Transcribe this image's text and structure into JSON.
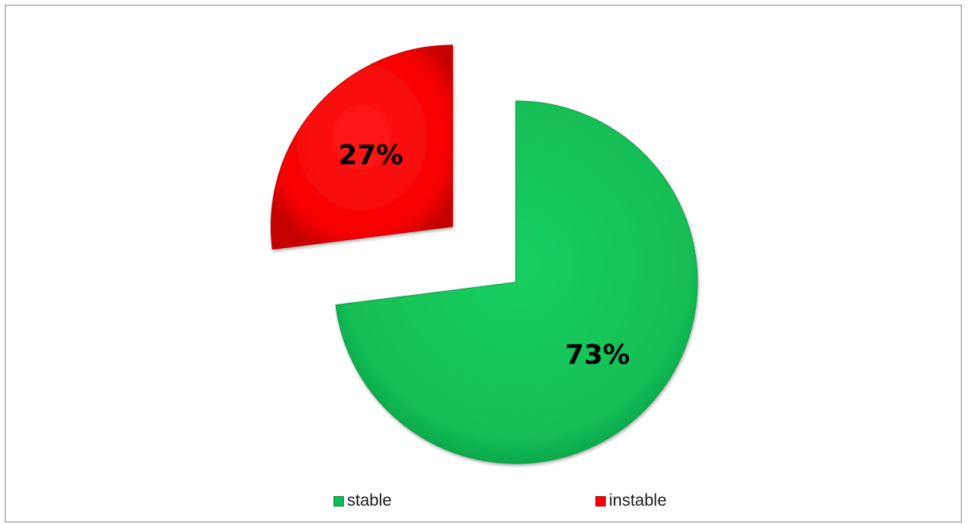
{
  "chart_data": {
    "type": "pie",
    "slices": [
      {
        "name": "stable",
        "value": 73,
        "label": "73%",
        "color": "#12be55"
      },
      {
        "name": "instable",
        "value": 27,
        "label": "27%",
        "color": "#ff0000"
      }
    ],
    "legend": {
      "position": "bottom",
      "entries": [
        "stable",
        "instable"
      ]
    },
    "exploded": [
      "instable"
    ],
    "title": ""
  }
}
